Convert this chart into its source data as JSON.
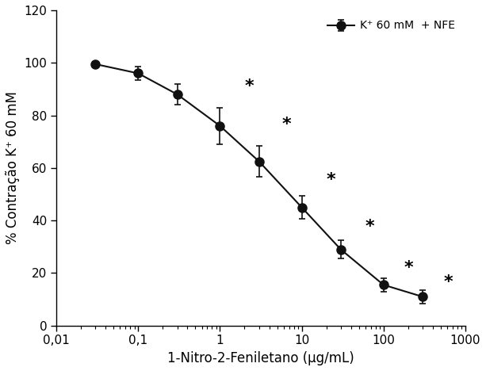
{
  "x": [
    0.03,
    0.1,
    0.3,
    1,
    3,
    10,
    30,
    100,
    300
  ],
  "y": [
    99.5,
    96.0,
    88.0,
    76.0,
    62.5,
    45.0,
    29.0,
    15.5,
    11.0
  ],
  "yerr": [
    1.0,
    2.5,
    4.0,
    7.0,
    6.0,
    4.5,
    3.5,
    2.5,
    2.5
  ],
  "star_indices": [
    3,
    4,
    5,
    6,
    7,
    8
  ],
  "xlim": [
    0.01,
    1000
  ],
  "ylim": [
    0,
    120
  ],
  "yticks": [
    0,
    20,
    40,
    60,
    80,
    100,
    120
  ],
  "xtick_labels": [
    "0,01",
    "0,1",
    "1",
    "10",
    "100",
    "1000"
  ],
  "xtick_positions": [
    0.01,
    0.1,
    1,
    10,
    100,
    1000
  ],
  "xlabel": "1-Nitro-2-Feniletano (µg/mL)",
  "ylabel": "% Contração K⁺ 60 mM",
  "legend_label": "K⁺ 60 mM  + NFE",
  "line_color": "#111111",
  "marker_color": "#111111",
  "marker_size": 8,
  "line_width": 1.5,
  "background_color": "#ffffff"
}
